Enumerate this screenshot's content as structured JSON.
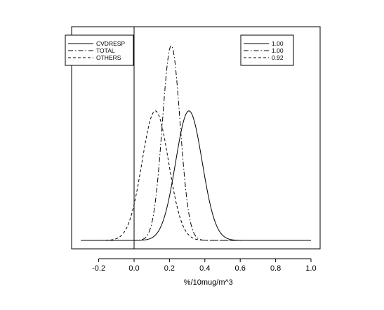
{
  "chart_data": {
    "type": "line",
    "title": "",
    "xlabel": "%/10mug/m^3",
    "ylabel": "",
    "xlim": [
      -0.35,
      1.05
    ],
    "x_ticks": [
      -0.2,
      0.0,
      0.2,
      0.4,
      0.6,
      0.8,
      1.0
    ],
    "x_tick_labels": [
      "-0.2",
      "0.0",
      "0.2",
      "0.4",
      "0.6",
      "0.8",
      "1.0"
    ],
    "y_axis_visible": false,
    "vertical_reference_line_x": 0.0,
    "grid": false,
    "x_range_drawn": [
      -0.3,
      1.0
    ],
    "series": [
      {
        "name": "CVDRESP",
        "line_style": "solid",
        "mean": 0.31,
        "sd": 0.075,
        "peak_density": 5.3
      },
      {
        "name": "TOTAL",
        "line_style": "dashdot",
        "mean": 0.21,
        "sd": 0.05,
        "peak_density": 7.97
      },
      {
        "name": "OTHERS",
        "line_style": "dashed",
        "mean": 0.12,
        "sd": 0.075,
        "peak_density": 5.3
      }
    ],
    "legend_left": {
      "placement": "top-left",
      "entries": [
        {
          "label": "CVDRESP",
          "line_style": "solid"
        },
        {
          "label": "TOTAL",
          "line_style": "dashdot"
        },
        {
          "label": "OTHERS",
          "line_style": "dashed"
        }
      ]
    },
    "legend_right": {
      "placement": "top-right",
      "entries": [
        {
          "label": "1.00",
          "line_style": "solid"
        },
        {
          "label": "1.00",
          "line_style": "dashdot"
        },
        {
          "label": "0.92",
          "line_style": "dashed"
        }
      ]
    }
  }
}
